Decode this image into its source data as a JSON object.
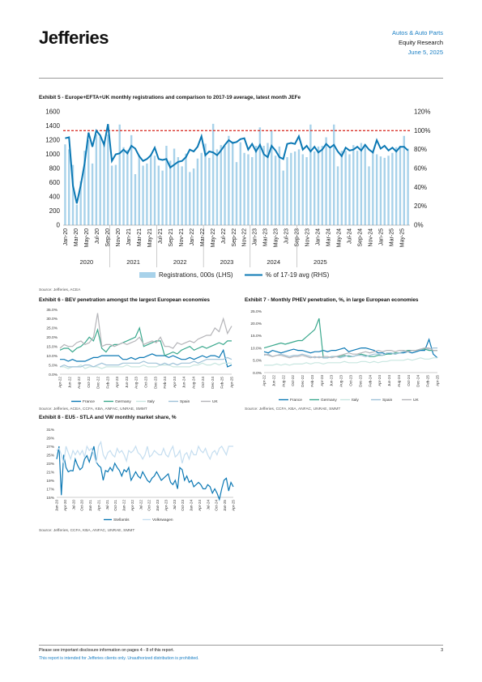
{
  "header": {
    "logo": "Jefferies",
    "sector": "Autos & Auto Parts",
    "dept": "Equity Research",
    "date": "June 5, 2025"
  },
  "exhibit5": {
    "title": "Exhibit 5 - Europe+EFTA+UK monthly registrations and comparison to 2017-19 average, latest month JEFe",
    "source": "Source: Jefferies, ACEA",
    "colors": {
      "bars": "#a8d2ea",
      "line": "#0b78b4",
      "ref": "#d9342b"
    },
    "chart_data": {
      "type": "bar",
      "ylim": [
        0,
        1600
      ],
      "y2lim": [
        0,
        1.2
      ],
      "yticks": [
        "0",
        "200",
        "400",
        "600",
        "800",
        "1000",
        "1200",
        "1400",
        "1600"
      ],
      "y2ticks": [
        "0%",
        "20%",
        "40%",
        "60%",
        "80%",
        "100%",
        "120%"
      ],
      "reference_line": 1.0,
      "month_labels": [
        "Jan-20",
        "Mar-20",
        "May-20",
        "Jul-20",
        "Sep-20",
        "Nov-20",
        "Jan-21",
        "Mar-21",
        "May-21",
        "Jul-21",
        "Sep-21",
        "Nov-21",
        "Jan-22",
        "Mar-22",
        "May-22",
        "Jul-22",
        "Sep-22",
        "Nov-22",
        "Jan-23",
        "Mar-23",
        "May-23",
        "Jul-23",
        "Sep-23",
        "Nov-23",
        "Jan-24",
        "Mar-24",
        "May-24",
        "Jul-24",
        "Sep-24",
        "Nov-24",
        "Jan-25",
        "Mar-25",
        "May-25"
      ],
      "years": [
        "2020",
        "2021",
        "2022",
        "2023",
        "2024",
        "2025"
      ],
      "legend": [
        "Registrations, 000s (LHS)",
        "% of 17-19 avg (RHS)"
      ],
      "series": [
        {
          "values": [
            1140,
            1070,
            850,
            290,
            620,
            1050,
            1200,
            870,
            1280,
            1250,
            1170,
            1280,
            840,
            850,
            1420,
            1100,
            1060,
            1270,
            720,
            990,
            840,
            870,
            1000,
            980,
            840,
            770,
            1120,
            910,
            1080,
            960,
            830,
            1010,
            750,
            800,
            940,
            1020,
            1150,
            950,
            1430,
            1070,
            1130,
            1120,
            1260,
            1180,
            890,
            1170,
            1020,
            1000,
            960,
            1120,
            1380,
            1120,
            1160,
            1330,
            980,
            1110,
            770,
            960,
            1020,
            1040,
            1070,
            1000,
            960,
            1420,
            1040,
            1110,
            1120,
            1240,
            1080,
            1420,
            830,
            1050,
            1050,
            1000,
            1130,
            1050,
            1160,
            1140,
            830,
            1050,
            1000,
            970,
            950,
            980,
            1020,
            1100,
            1120,
            1260,
            1080
          ]
        },
        {
          "values": [
            0.92,
            0.93,
            0.42,
            0.23,
            0.42,
            0.65,
            0.98,
            0.83,
            1.0,
            0.95,
            0.85,
            1.07,
            0.68,
            0.75,
            0.76,
            0.8,
            0.76,
            0.84,
            0.81,
            0.73,
            0.68,
            0.7,
            0.74,
            0.82,
            0.7,
            0.69,
            0.7,
            0.61,
            0.64,
            0.67,
            0.68,
            0.72,
            0.8,
            0.78,
            0.83,
            0.94,
            0.74,
            0.78,
            0.77,
            0.74,
            0.79,
            0.85,
            0.9,
            0.87,
            0.88,
            0.91,
            0.92,
            0.8,
            0.86,
            0.78,
            0.85,
            0.75,
            0.72,
            0.84,
            0.79,
            0.72,
            0.7,
            0.86,
            0.87,
            0.86,
            0.94,
            0.8,
            0.84,
            0.78,
            0.83,
            0.77,
            0.8,
            0.86,
            0.82,
            0.85,
            0.78,
            0.73,
            0.82,
            0.79,
            0.8,
            0.83,
            0.79,
            0.85,
            0.8,
            0.77,
            0.9,
            0.81,
            0.84,
            0.79,
            0.82,
            0.78,
            0.83,
            0.83,
            0.79
          ]
        }
      ]
    }
  },
  "exhibit6": {
    "title": "Exhibit 6 - BEV penetration amongst the largest European economies",
    "source": "Source: Jefferies, ACEA, CCFA, KBA, ANFAC, UNRAE, SMMT",
    "chart_data": {
      "type": "line",
      "ylim": [
        0,
        0.35
      ],
      "yticks": [
        "0.0%",
        "5.0%",
        "10.0%",
        "15.0%",
        "20.0%",
        "25.0%",
        "30.0%",
        "35.0%"
      ],
      "xticks": [
        "Apr-22",
        "Jun-22",
        "Aug-22",
        "Oct-22",
        "Dec-22",
        "Feb-23",
        "Apr-23",
        "Jun-23",
        "Aug-23",
        "Oct-23",
        "Dec-23",
        "Feb-24",
        "Apr-24",
        "Jun-24",
        "Aug-24",
        "Oct-24",
        "Dec-24",
        "Feb-25",
        "Apr-25"
      ],
      "series": [
        {
          "name": "France",
          "color": "#0b78b4",
          "values": [
            0.08,
            0.08,
            0.07,
            0.08,
            0.07,
            0.07,
            0.07,
            0.08,
            0.09,
            0.09,
            0.1,
            0.1,
            0.1,
            0.1,
            0.1,
            0.08,
            0.08,
            0.09,
            0.08,
            0.09,
            0.09,
            0.1,
            0.11,
            0.1,
            0.1,
            0.1,
            0.09,
            0.1,
            0.09,
            0.08,
            0.08,
            0.09,
            0.08,
            0.09,
            0.1,
            0.09,
            0.1,
            0.1,
            0.09,
            0.13,
            0.04,
            0.05
          ]
        },
        {
          "name": "Germany",
          "color": "#3aa88d",
          "values": [
            0.13,
            0.14,
            0.14,
            0.12,
            0.14,
            0.15,
            0.17,
            0.2,
            0.18,
            0.24,
            0.14,
            0.12,
            0.15,
            0.16,
            0.16,
            0.17,
            0.18,
            0.19,
            0.2,
            0.25,
            0.15,
            0.16,
            0.17,
            0.18,
            0.18,
            0.1,
            0.11,
            0.12,
            0.11,
            0.13,
            0.14,
            0.15,
            0.13,
            0.14,
            0.15,
            0.14,
            0.15,
            0.16,
            0.17,
            0.16,
            0.18,
            0.18
          ]
        },
        {
          "name": "Italy",
          "color": "#c8e6e0",
          "values": [
            0.04,
            0.04,
            0.03,
            0.04,
            0.04,
            0.05,
            0.03,
            0.04,
            0.04,
            0.04,
            0.03,
            0.04,
            0.04,
            0.04,
            0.04,
            0.04,
            0.05,
            0.04,
            0.04,
            0.04,
            0.05,
            0.04,
            0.04,
            0.04,
            0.05,
            0.05,
            0.05,
            0.04,
            0.04,
            0.04,
            0.04,
            0.04,
            0.05,
            0.05,
            0.06,
            0.05,
            0.05,
            0.06,
            0.05,
            0.06,
            0.06,
            0.06
          ]
        },
        {
          "name": "Spain",
          "color": "#9fc2d8",
          "values": [
            0.04,
            0.05,
            0.04,
            0.04,
            0.04,
            0.04,
            0.05,
            0.05,
            0.04,
            0.05,
            0.06,
            0.05,
            0.05,
            0.05,
            0.05,
            0.06,
            0.06,
            0.06,
            0.06,
            0.06,
            0.07,
            0.06,
            0.06,
            0.06,
            0.05,
            0.06,
            0.05,
            0.06,
            0.05,
            0.06,
            0.06,
            0.06,
            0.07,
            0.06,
            0.07,
            0.08,
            0.08,
            0.08,
            0.08,
            0.08,
            0.09,
            0.08
          ]
        },
        {
          "name": "UK",
          "color": "#b4b4b8",
          "values": [
            0.14,
            0.16,
            0.15,
            0.15,
            0.17,
            0.18,
            0.16,
            0.17,
            0.2,
            0.33,
            0.15,
            0.16,
            0.16,
            0.15,
            0.16,
            0.17,
            0.16,
            0.17,
            0.18,
            0.2,
            0.16,
            0.17,
            0.18,
            0.17,
            0.2,
            0.15,
            0.15,
            0.14,
            0.17,
            0.16,
            0.17,
            0.18,
            0.17,
            0.19,
            0.2,
            0.21,
            0.21,
            0.25,
            0.23,
            0.3,
            0.22,
            0.26
          ]
        }
      ]
    }
  },
  "exhibit7": {
    "title": "Exhibit 7 - Monthly PHEV penetration, %, in large European economies",
    "source": "Source: Jefferies, CCFA, KBA, ANFAC, UNRAE, SMMT",
    "chart_data": {
      "type": "line",
      "ylim": [
        0,
        0.25
      ],
      "yticks": [
        "0.0%",
        "5.0%",
        "10.0%",
        "15.0%",
        "20.0%",
        "25.0%"
      ],
      "xticks": [
        "Apr-22",
        "Jun-22",
        "Aug-22",
        "Oct-22",
        "Dec-22",
        "Feb-23",
        "Apr-23",
        "Jun-23",
        "Aug-23",
        "Oct-23",
        "Dec-23",
        "Feb-24",
        "Apr-24",
        "Jun-24",
        "Aug-24",
        "Oct-24",
        "Dec-24",
        "Feb-25",
        "Apr-25"
      ],
      "series": [
        {
          "name": "France",
          "color": "#0b78b4",
          "values": [
            0.085,
            0.08,
            0.09,
            0.085,
            0.08,
            0.085,
            0.09,
            0.095,
            0.09,
            0.09,
            0.085,
            0.08,
            0.085,
            0.085,
            0.09,
            0.085,
            0.09,
            0.09,
            0.095,
            0.1,
            0.085,
            0.09,
            0.095,
            0.1,
            0.1,
            0.095,
            0.09,
            0.08,
            0.08,
            0.075,
            0.08,
            0.075,
            0.08,
            0.08,
            0.085,
            0.08,
            0.085,
            0.09,
            0.09,
            0.135,
            0.075,
            0.06
          ]
        },
        {
          "name": "Germany",
          "color": "#3aa88d",
          "values": [
            0.1,
            0.105,
            0.11,
            0.115,
            0.12,
            0.115,
            0.12,
            0.125,
            0.13,
            0.13,
            0.145,
            0.16,
            0.175,
            0.22,
            0.06,
            0.06,
            0.065,
            0.065,
            0.065,
            0.07,
            0.065,
            0.065,
            0.07,
            0.075,
            0.07,
            0.065,
            0.065,
            0.07,
            0.07,
            0.075,
            0.075,
            0.08,
            0.08,
            0.085,
            0.09,
            0.09,
            0.09,
            0.095,
            0.095,
            0.09,
            0.09,
            0.09
          ]
        },
        {
          "name": "Italy",
          "color": "#c8e6e0",
          "values": [
            0.03,
            0.03,
            0.03,
            0.035,
            0.03,
            0.035,
            0.03,
            0.035,
            0.035,
            0.035,
            0.04,
            0.035,
            0.04,
            0.04,
            0.035,
            0.04,
            0.04,
            0.04,
            0.04,
            0.045,
            0.04,
            0.04,
            0.04,
            0.045,
            0.045,
            0.04,
            0.045,
            0.04,
            0.045,
            0.045,
            0.05,
            0.05,
            0.05,
            0.05,
            0.055,
            0.05,
            0.055,
            0.06,
            0.055,
            0.055,
            0.06,
            0.06
          ]
        },
        {
          "name": "Spain",
          "color": "#9fc2d8",
          "values": [
            0.07,
            0.075,
            0.065,
            0.07,
            0.075,
            0.07,
            0.065,
            0.07,
            0.07,
            0.075,
            0.07,
            0.065,
            0.06,
            0.065,
            0.06,
            0.06,
            0.065,
            0.065,
            0.06,
            0.065,
            0.07,
            0.065,
            0.07,
            0.07,
            0.065,
            0.07,
            0.075,
            0.075,
            0.07,
            0.08,
            0.08,
            0.075,
            0.08,
            0.085,
            0.085,
            0.09,
            0.09,
            0.095,
            0.1,
            0.095,
            0.1,
            0.1
          ]
        },
        {
          "name": "UK",
          "color": "#b4b4b8",
          "values": [
            0.075,
            0.07,
            0.065,
            0.07,
            0.07,
            0.065,
            0.06,
            0.065,
            0.065,
            0.07,
            0.065,
            0.06,
            0.065,
            0.06,
            0.065,
            0.065,
            0.06,
            0.065,
            0.07,
            0.075,
            0.08,
            0.075,
            0.075,
            0.08,
            0.085,
            0.08,
            0.085,
            0.09,
            0.085,
            0.09,
            0.09,
            0.085,
            0.09,
            0.09,
            0.085,
            0.09,
            0.09,
            0.095,
            0.1,
            0.1,
            0.09,
            0.09
          ]
        }
      ]
    }
  },
  "exhibit8": {
    "title": "Exhibit 8 - EU5 - STLA and VW monthly market share, %",
    "source": "Source: Jefferies, CCFA, KBA, ANFAC, UNRAE, SMMT",
    "chart_data": {
      "type": "line",
      "ylim": [
        0.15,
        0.31
      ],
      "yticks": [
        "15%",
        "17%",
        "19%",
        "21%",
        "23%",
        "25%",
        "27%",
        "29%",
        "31%"
      ],
      "xticks": [
        "Jan-20",
        "Apr-20",
        "Jul-20",
        "Oct-20",
        "Jan-21",
        "Apr-21",
        "Jul-21",
        "Oct-21",
        "Jan-22",
        "Apr-22",
        "Jul-22",
        "Oct-22",
        "Jan-23",
        "Apr-23",
        "Jul-23",
        "Oct-23",
        "Jan-24",
        "Apr-24",
        "Jul-24",
        "Oct-24",
        "Jan-25",
        "Apr-25"
      ],
      "series": [
        {
          "name": "Stellantis",
          "color": "#0b78b4",
          "values": [
            0.24,
            0.27,
            0.155,
            0.25,
            0.22,
            0.21,
            0.213,
            0.212,
            0.24,
            0.225,
            0.215,
            0.22,
            0.24,
            0.248,
            0.233,
            0.25,
            0.27,
            0.233,
            0.225,
            0.22,
            0.19,
            0.213,
            0.21,
            0.22,
            0.212,
            0.23,
            0.22,
            0.213,
            0.2,
            0.215,
            0.21,
            0.22,
            0.19,
            0.2,
            0.21,
            0.2,
            0.195,
            0.21,
            0.2,
            0.19,
            0.185,
            0.195,
            0.2,
            0.21,
            0.2,
            0.19,
            0.195,
            0.2,
            0.205,
            0.185,
            0.18,
            0.19,
            0.17,
            0.22,
            0.215,
            0.19,
            0.2,
            0.185,
            0.19,
            0.175,
            0.18,
            0.185,
            0.18,
            0.17,
            0.17,
            0.18,
            0.175,
            0.16,
            0.17,
            0.16,
            0.145,
            0.17,
            0.19,
            0.195,
            0.165,
            0.185,
            0.175
          ]
        },
        {
          "name": "Volkswagen",
          "color": "#c5def0",
          "values": [
            0.26,
            0.265,
            0.25,
            0.23,
            0.27,
            0.255,
            0.24,
            0.26,
            0.25,
            0.26,
            0.25,
            0.26,
            0.245,
            0.27,
            0.26,
            0.265,
            0.25,
            0.23,
            0.27,
            0.28,
            0.25,
            0.24,
            0.255,
            0.26,
            0.25,
            0.245,
            0.265,
            0.255,
            0.26,
            0.25,
            0.235,
            0.26,
            0.255,
            0.26,
            0.27,
            0.255,
            0.25,
            0.24,
            0.25,
            0.27,
            0.245,
            0.25,
            0.26,
            0.255,
            0.25,
            0.25,
            0.265,
            0.25,
            0.245,
            0.26,
            0.27,
            0.245,
            0.25,
            0.26,
            0.23,
            0.25,
            0.255,
            0.24,
            0.26,
            0.25,
            0.25,
            0.27,
            0.26,
            0.255,
            0.265,
            0.25,
            0.24,
            0.255,
            0.26,
            0.25,
            0.265,
            0.27,
            0.26,
            0.25,
            0.27,
            0.27,
            0.27
          ]
        }
      ]
    }
  },
  "footer": {
    "disclosure": "Please see important disclosure information on pages 4 - 8 of this report.",
    "notice": "This report is intended for Jefferies clients only. Unauthorized distribution is prohibited.",
    "page": "3"
  }
}
